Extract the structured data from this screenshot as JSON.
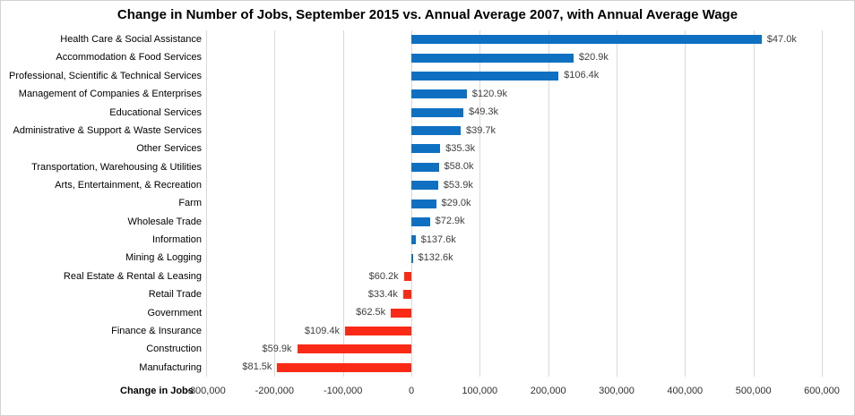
{
  "header": {
    "title": "Change in Number of Jobs, September 2015 vs. Annual Average 2007, with Annual Average Wage"
  },
  "axis": {
    "x_title": "Change in Jobs"
  },
  "chart_data": {
    "type": "bar",
    "orientation": "horizontal",
    "title": "Change in Number of Jobs, September 2015 vs. Annual Average 2007, with Annual Average Wage",
    "xlabel": "Change in Jobs",
    "ylabel": "",
    "xlim": [
      -300000,
      600000
    ],
    "grid": true,
    "xticks": [
      -300000,
      -200000,
      -100000,
      0,
      100000,
      200000,
      300000,
      400000,
      500000,
      600000
    ],
    "tick_labels": [
      "-300,000",
      "-200,000",
      "-100,000",
      "0",
      "100,000",
      "200,000",
      "300,000",
      "400,000",
      "500,000",
      "600,000"
    ],
    "categories": [
      "Health Care & Social Assistance",
      "Accommodation & Food Services",
      "Professional, Scientific & Technical Services",
      "Management of Companies & Enterprises",
      "Educational Services",
      "Administrative & Support & Waste Services",
      "Other Services",
      "Transportation, Warehousing & Utilities",
      "Arts, Entertainment, & Recreation",
      "Farm",
      "Wholesale Trade",
      "Information",
      "Mining & Logging",
      "Real Estate & Rental & Leasing",
      "Retail Trade",
      "Government",
      "Finance & Insurance",
      "Construction",
      "Manufacturing"
    ],
    "series": [
      {
        "name": "Change in Jobs (Sept 2015 vs. Annual Average 2007)",
        "values": [
          512000,
          237000,
          215000,
          81000,
          76000,
          72000,
          42000,
          40000,
          39000,
          36000,
          27000,
          6000,
          2000,
          -11000,
          -12000,
          -30000,
          -97000,
          -167000,
          -196000
        ]
      }
    ],
    "bar_labels": [
      "$47.0k",
      "$20.9k",
      "$106.4k",
      "$120.9k",
      "$49.3k",
      "$39.7k",
      "$35.3k",
      "$58.0k",
      "$53.9k",
      "$29.0k",
      "$72.9k",
      "$137.6k",
      "$132.6k",
      "$60.2k",
      "$33.4k",
      "$62.5k",
      "$109.4k",
      "$59.9k",
      "$81.5k"
    ],
    "bar_label_meaning": "Annual Average Wage",
    "colors": {
      "positive": "#0f70c2",
      "negative": "#fb2a16",
      "gridline": "#d9d9d9",
      "label_text": "#3f3f3f"
    },
    "legend_position": "none"
  }
}
